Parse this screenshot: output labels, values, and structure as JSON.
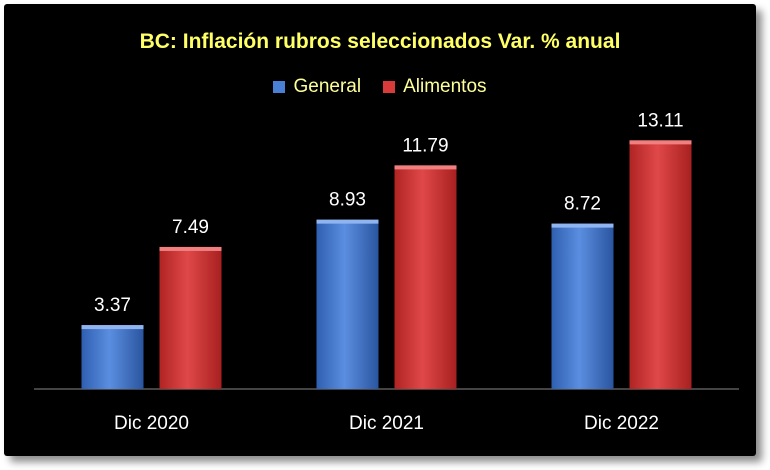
{
  "chart_data": {
    "type": "bar",
    "title": "BC: Inflación rubros seleccionados Var. % anual",
    "categories": [
      "Dic 2020",
      "Dic 2021",
      "Dic 2022"
    ],
    "series": [
      {
        "name": "General",
        "values": [
          3.37,
          8.93,
          8.72
        ],
        "color": "#4a7fd6"
      },
      {
        "name": "Alimentos",
        "values": [
          7.49,
          11.79,
          13.11
        ],
        "color": "#d93a3a"
      }
    ],
    "ylim": [
      0,
      14.5
    ],
    "legend_position": "top-center",
    "grid": false,
    "value_labels": true
  }
}
